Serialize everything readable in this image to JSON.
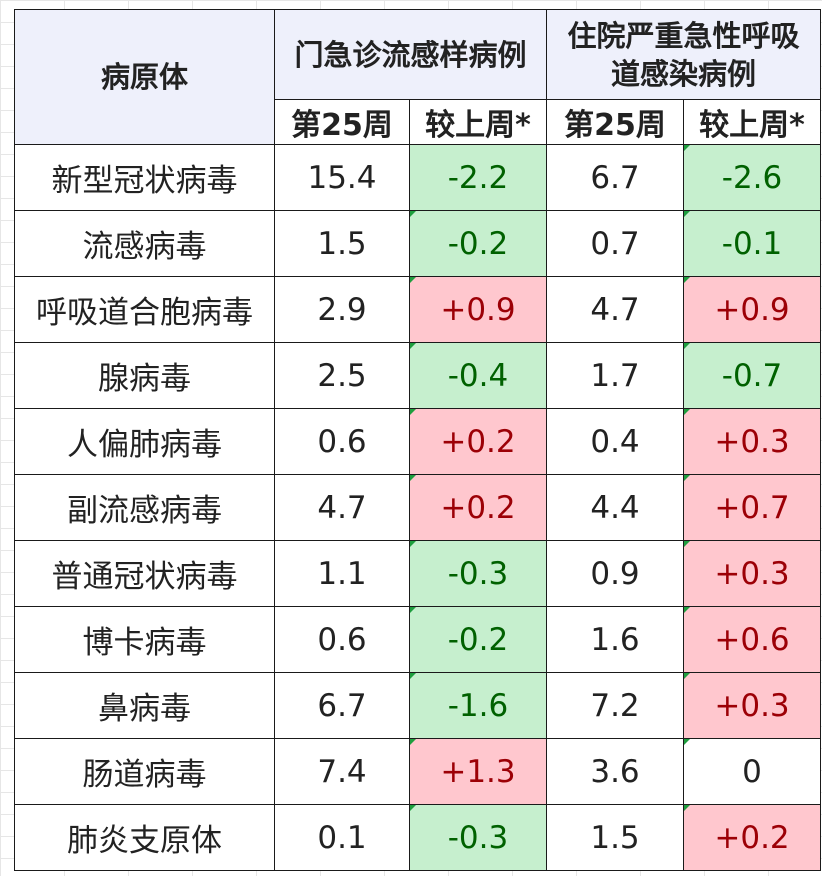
{
  "table": {
    "header": {
      "pathogen": "病原体",
      "outpatient": "门急诊流感样病例",
      "inpatient_line1": "住院严重急性呼吸",
      "inpatient_line2": "道感染病例",
      "week": "第25周",
      "change": "较上周*"
    },
    "rows": [
      {
        "name": "新型冠状病毒",
        "op_week": "15.4",
        "op_change": "-2.2",
        "op_dir": "down",
        "ip_week": "6.7",
        "ip_change": "-2.6",
        "ip_dir": "down"
      },
      {
        "name": "流感病毒",
        "op_week": "1.5",
        "op_change": "-0.2",
        "op_dir": "down",
        "ip_week": "0.7",
        "ip_change": "-0.1",
        "ip_dir": "down"
      },
      {
        "name": "呼吸道合胞病毒",
        "op_week": "2.9",
        "op_change": "+0.9",
        "op_dir": "up",
        "ip_week": "4.7",
        "ip_change": "+0.9",
        "ip_dir": "up"
      },
      {
        "name": "腺病毒",
        "op_week": "2.5",
        "op_change": "-0.4",
        "op_dir": "down",
        "ip_week": "1.7",
        "ip_change": "-0.7",
        "ip_dir": "down"
      },
      {
        "name": "人偏肺病毒",
        "op_week": "0.6",
        "op_change": "+0.2",
        "op_dir": "up",
        "ip_week": "0.4",
        "ip_change": "+0.3",
        "ip_dir": "up"
      },
      {
        "name": "副流感病毒",
        "op_week": "4.7",
        "op_change": "+0.2",
        "op_dir": "up",
        "ip_week": "4.4",
        "ip_change": "+0.7",
        "ip_dir": "up"
      },
      {
        "name": "普通冠状病毒",
        "op_week": "1.1",
        "op_change": "-0.3",
        "op_dir": "down",
        "ip_week": "0.9",
        "ip_change": "+0.3",
        "ip_dir": "up"
      },
      {
        "name": "博卡病毒",
        "op_week": "0.6",
        "op_change": "-0.2",
        "op_dir": "down",
        "ip_week": "1.6",
        "ip_change": "+0.6",
        "ip_dir": "up"
      },
      {
        "name": "鼻病毒",
        "op_week": "6.7",
        "op_change": "-1.6",
        "op_dir": "down",
        "ip_week": "7.2",
        "ip_change": "+0.3",
        "ip_dir": "up"
      },
      {
        "name": "肠道病毒",
        "op_week": "7.4",
        "op_change": "+1.3",
        "op_dir": "up",
        "ip_week": "3.6",
        "ip_change": "0",
        "ip_dir": "flat"
      },
      {
        "name": "肺炎支原体",
        "op_week": "0.1",
        "op_change": "-0.3",
        "op_dir": "down",
        "ip_week": "1.5",
        "ip_change": "+0.2",
        "ip_dir": "up"
      }
    ]
  },
  "colors": {
    "header_bg": "#eef0fb",
    "decrease_bg": "#c6efce",
    "decrease_text": "#006100",
    "increase_bg": "#ffc7ce",
    "increase_text": "#9c0006",
    "comment_marker": "#1e9e3e"
  }
}
